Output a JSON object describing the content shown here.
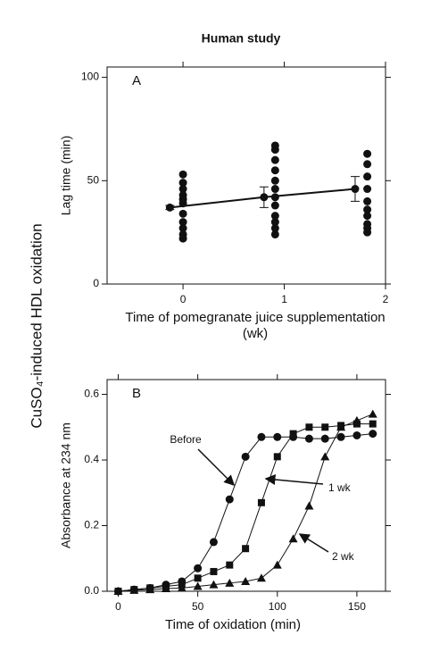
{
  "title": "Human study",
  "ylabel": "CuSO₄-induced HDL oxidation",
  "chart_data": [
    {
      "type": "scatter",
      "panel": "A",
      "ylabel": "Lag time (min)",
      "xlabel": [
        "Time of pomegranate juice supplementation",
        "(wk)"
      ],
      "xlim": [
        -0.75,
        2
      ],
      "ylim": [
        0,
        105
      ],
      "xticks": [
        0,
        1,
        2
      ],
      "yticks": [
        0,
        50,
        100
      ],
      "series": [
        {
          "color": "#111111",
          "x": [
            0,
            0,
            0,
            0,
            0,
            0,
            0,
            0,
            0,
            0,
            0,
            0.91,
            0.91,
            0.91,
            0.91,
            0.91,
            0.91,
            0.91,
            0.91,
            0.91,
            0.91,
            0.91,
            0.91,
            1.82,
            1.82,
            1.82,
            1.82,
            1.82,
            1.82,
            1.82,
            1.82,
            1.82,
            1.82
          ],
          "values": [
            53,
            49,
            46,
            43,
            41,
            39,
            34,
            30,
            27,
            24,
            22,
            67,
            65,
            60,
            55,
            50,
            46,
            42,
            38,
            33,
            30,
            27,
            24,
            63,
            58,
            52,
            46,
            40,
            36,
            33,
            29,
            27,
            25
          ]
        },
        {
          "color": "#111111",
          "x": [
            -0.13,
            0.8,
            1.7
          ],
          "values": [
            37,
            42,
            46
          ],
          "errors": [
            1,
            5,
            6
          ]
        }
      ]
    },
    {
      "type": "line",
      "panel": "B",
      "ylabel": "Absorbance at 234 nm",
      "xlabel": "Time of oxidation (min)",
      "xlim": [
        -7,
        168
      ],
      "ylim": [
        0,
        0.645
      ],
      "xticks": [
        0,
        50,
        100,
        150
      ],
      "yticks": [
        {
          "value": 0,
          "label": "0.0"
        },
        0.2,
        0.4,
        0.6
      ],
      "x": [
        0,
        10,
        20,
        30,
        40,
        50,
        60,
        70,
        80,
        90,
        100,
        110,
        120,
        130,
        140,
        150,
        160
      ],
      "series": [
        {
          "name": "Before",
          "marker": "circle",
          "color": "#111111",
          "values": [
            0,
            0.005,
            0.01,
            0.02,
            0.03,
            0.07,
            0.15,
            0.28,
            0.41,
            0.47,
            0.47,
            0.47,
            0.465,
            0.465,
            0.47,
            0.475,
            0.48
          ]
        },
        {
          "name": "1 wk",
          "marker": "square",
          "color": "#111111",
          "values": [
            0,
            0.005,
            0.01,
            0.015,
            0.02,
            0.04,
            0.06,
            0.08,
            0.13,
            0.27,
            0.41,
            0.48,
            0.5,
            0.5,
            0.505,
            0.51,
            0.51
          ]
        },
        {
          "name": "2 wk",
          "marker": "triangle",
          "color": "#111111",
          "values": [
            0,
            0.003,
            0.005,
            0.008,
            0.01,
            0.015,
            0.02,
            0.025,
            0.03,
            0.04,
            0.08,
            0.16,
            0.26,
            0.41,
            0.5,
            0.52,
            0.54
          ]
        }
      ]
    }
  ]
}
